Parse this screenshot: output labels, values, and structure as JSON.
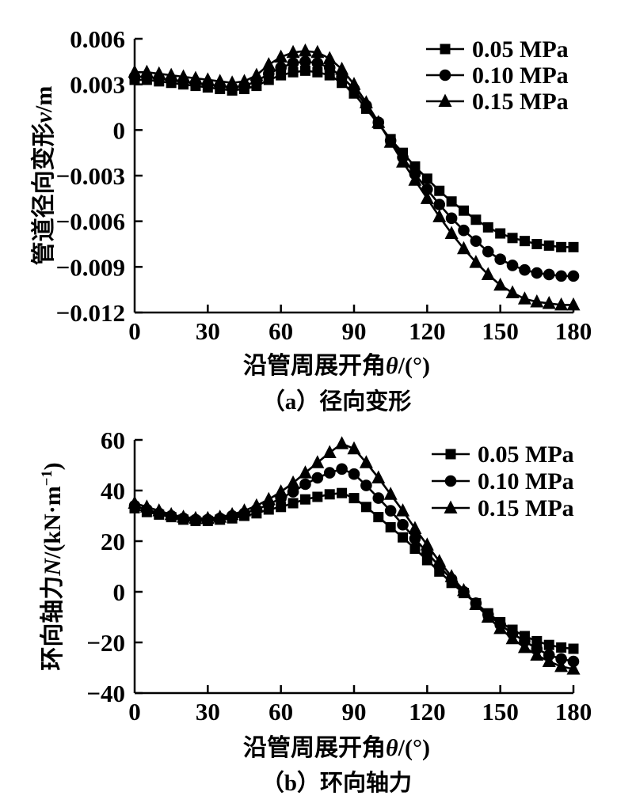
{
  "figure": {
    "background": "#ffffff",
    "ink_color": "#000000"
  },
  "chart_data": [
    {
      "id": "a",
      "type": "line",
      "caption": "（a）径向变形",
      "xlabel_parts": [
        {
          "t": "沿管周展开角"
        },
        {
          "t": "θ",
          "i": true
        },
        {
          "t": "/(°)"
        }
      ],
      "ylabel_parts": [
        {
          "t": "管道径向变形"
        },
        {
          "t": "v",
          "i": true
        },
        {
          "t": "/m"
        }
      ],
      "xlim": [
        0,
        180
      ],
      "ylim": [
        -0.012,
        0.006
      ],
      "xticks": [
        0,
        30,
        60,
        90,
        120,
        150,
        180
      ],
      "xtick_labels": [
        "0",
        "30",
        "60",
        "90",
        "120",
        "150",
        "180"
      ],
      "yticks": [
        0.006,
        0.003,
        0,
        -0.003,
        -0.006,
        -0.009,
        -0.012
      ],
      "ytick_labels": [
        "0.006",
        "0.003",
        "0",
        "−0.003",
        "−0.006",
        "−0.009",
        "−0.012"
      ],
      "grid": false,
      "legend_position": "top-right",
      "x": [
        0,
        5,
        10,
        15,
        20,
        25,
        30,
        35,
        40,
        45,
        50,
        55,
        60,
        65,
        70,
        75,
        80,
        85,
        90,
        95,
        100,
        105,
        110,
        115,
        120,
        125,
        130,
        135,
        140,
        145,
        150,
        155,
        160,
        165,
        170,
        175,
        180
      ],
      "series": [
        {
          "name": "0.05 MPa",
          "marker": "square",
          "values": [
            0.0033,
            0.0033,
            0.0032,
            0.0031,
            0.003,
            0.0029,
            0.0028,
            0.0027,
            0.0026,
            0.0027,
            0.0029,
            0.0033,
            0.0036,
            0.0038,
            0.0039,
            0.0038,
            0.0036,
            0.0031,
            0.0024,
            0.0014,
            0.0004,
            -0.0006,
            -0.0015,
            -0.0024,
            -0.0032,
            -0.004,
            -0.0047,
            -0.0053,
            -0.0059,
            -0.0064,
            -0.0068,
            -0.0071,
            -0.0073,
            -0.0075,
            -0.0076,
            -0.0077,
            -0.0077
          ]
        },
        {
          "name": "0.10 MPa",
          "marker": "circle",
          "values": [
            0.0035,
            0.0035,
            0.0034,
            0.0033,
            0.0032,
            0.0031,
            0.003,
            0.0029,
            0.0028,
            0.0029,
            0.0032,
            0.0037,
            0.0041,
            0.0044,
            0.0045,
            0.0044,
            0.0041,
            0.0035,
            0.0027,
            0.0016,
            0.0005,
            -0.0007,
            -0.0018,
            -0.0029,
            -0.0039,
            -0.0049,
            -0.0058,
            -0.0066,
            -0.0073,
            -0.008,
            -0.0085,
            -0.0089,
            -0.0092,
            -0.0094,
            -0.0095,
            -0.0096,
            -0.0096
          ]
        },
        {
          "name": "0.15 MPa",
          "marker": "triangle",
          "values": [
            0.0038,
            0.0038,
            0.0037,
            0.0036,
            0.0035,
            0.0034,
            0.0033,
            0.0032,
            0.0031,
            0.0032,
            0.0036,
            0.0043,
            0.0048,
            0.0051,
            0.0052,
            0.0051,
            0.0047,
            0.004,
            0.003,
            0.0018,
            0.0005,
            -0.0008,
            -0.0021,
            -0.0033,
            -0.0045,
            -0.0057,
            -0.0068,
            -0.0078,
            -0.0087,
            -0.0095,
            -0.0102,
            -0.0107,
            -0.0111,
            -0.0113,
            -0.0114,
            -0.0115,
            -0.0115
          ]
        }
      ]
    },
    {
      "id": "b",
      "type": "line",
      "caption": "（b）环向轴力",
      "xlabel_parts": [
        {
          "t": "沿管周展开角"
        },
        {
          "t": "θ",
          "i": true
        },
        {
          "t": "/(°)"
        }
      ],
      "ylabel_parts": [
        {
          "t": "环向轴力"
        },
        {
          "t": "N",
          "i": true
        },
        {
          "t": "/(kN·m"
        },
        {
          "t": "−1",
          "sup": true
        },
        {
          "t": ")"
        }
      ],
      "xlim": [
        0,
        180
      ],
      "ylim": [
        -40,
        60
      ],
      "xticks": [
        0,
        30,
        60,
        90,
        120,
        150,
        180
      ],
      "xtick_labels": [
        "0",
        "30",
        "60",
        "90",
        "120",
        "150",
        "180"
      ],
      "yticks": [
        60,
        40,
        20,
        0,
        -20,
        -40
      ],
      "ytick_labels": [
        "60",
        "40",
        "20",
        "0",
        "−20",
        "−40"
      ],
      "grid": false,
      "legend_position": "top-right",
      "x": [
        0,
        5,
        10,
        15,
        20,
        25,
        30,
        35,
        40,
        45,
        50,
        55,
        60,
        65,
        70,
        75,
        80,
        85,
        90,
        95,
        100,
        105,
        110,
        115,
        120,
        125,
        130,
        135,
        140,
        145,
        150,
        155,
        160,
        165,
        170,
        175,
        180
      ],
      "series": [
        {
          "name": "0.05 MPa",
          "marker": "square",
          "values": [
            33,
            31.5,
            30.5,
            29.5,
            28.5,
            28,
            28,
            28.5,
            29,
            30,
            31,
            32.5,
            33.5,
            35,
            36.5,
            37.5,
            38.5,
            39,
            37,
            33.5,
            29.5,
            25.5,
            21.5,
            17,
            12.5,
            8,
            3.5,
            -0.5,
            -4.5,
            -8.5,
            -12,
            -15,
            -17.5,
            -19.5,
            -21,
            -22,
            -22.5
          ]
        },
        {
          "name": "0.10 MPa",
          "marker": "circle",
          "values": [
            34,
            32.5,
            31,
            30,
            29,
            28.5,
            28.5,
            29,
            30,
            31,
            32.5,
            34.5,
            37,
            39.5,
            42.5,
            45,
            47,
            48.5,
            46.5,
            42,
            37,
            32,
            26.5,
            21,
            15.5,
            10,
            5,
            0,
            -4.5,
            -9,
            -13,
            -16.5,
            -19.5,
            -22.5,
            -25,
            -26.5,
            -27.5
          ]
        },
        {
          "name": "0.15 MPa",
          "marker": "triangle",
          "values": [
            35,
            33.5,
            32,
            30.5,
            29.5,
            29,
            29,
            29.5,
            30.5,
            32,
            34,
            36.5,
            39.5,
            43,
            47,
            51,
            55,
            58.5,
            56.5,
            51,
            45,
            38.5,
            32,
            25,
            18.5,
            12,
            6,
            0.5,
            -5,
            -10,
            -14.5,
            -18.5,
            -22,
            -25,
            -27.5,
            -29.5,
            -30.5
          ]
        }
      ]
    }
  ]
}
